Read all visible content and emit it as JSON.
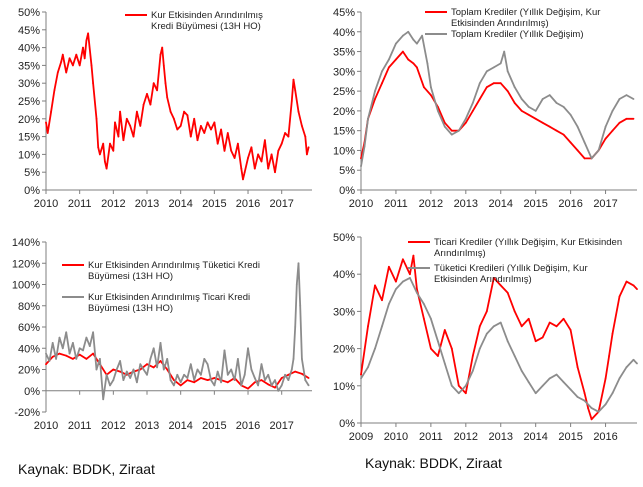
{
  "colors": {
    "red": "#ff0000",
    "gray": "#8c8c8c",
    "axis": "#7f7f7f"
  },
  "sources": {
    "left": "Kaynak: BDDK, Ziraat",
    "right": "Kaynak: BDDK, Ziraat"
  },
  "chart_data": [
    {
      "type": "line",
      "title": "",
      "ylim": [
        0,
        50
      ],
      "ytick_values": [
        0,
        5,
        10,
        15,
        20,
        25,
        30,
        35,
        40,
        45,
        50
      ],
      "ytick_labels": [
        "0%",
        "5%",
        "10%",
        "15%",
        "20%",
        "25%",
        "30%",
        "35%",
        "40%",
        "45%",
        "50%"
      ],
      "xlim": [
        2010,
        2017.9
      ],
      "xtick_values": [
        2010,
        2011,
        2012,
        2013,
        2014,
        2015,
        2016,
        2017
      ],
      "xtick_labels": [
        "2010",
        "2011",
        "2012",
        "2013",
        "2014",
        "2015",
        "2016",
        "2017"
      ],
      "grid": false,
      "legend_position": "top-right",
      "series": [
        {
          "name": "Kur Etkisinden Arındırılmış Kredi Büyümesi (13H HO)",
          "legend_lines": [
            "Kur Etkisinden Arındırılmış",
            "Kredi Büyümesi (13H HO)"
          ],
          "color": "red",
          "x": [
            2010.0,
            2010.05,
            2010.15,
            2010.25,
            2010.35,
            2010.45,
            2010.5,
            2010.6,
            2010.7,
            2010.8,
            2010.9,
            2011.0,
            2011.1,
            2011.15,
            2011.2,
            2011.25,
            2011.35,
            2011.4,
            2011.5,
            2011.55,
            2011.6,
            2011.7,
            2011.75,
            2011.8,
            2011.9,
            2012.0,
            2012.05,
            2012.15,
            2012.2,
            2012.3,
            2012.4,
            2012.5,
            2012.6,
            2012.7,
            2012.8,
            2012.9,
            2013.0,
            2013.1,
            2013.2,
            2013.3,
            2013.4,
            2013.45,
            2013.5,
            2013.55,
            2013.6,
            2013.7,
            2013.8,
            2013.9,
            2014.0,
            2014.1,
            2014.2,
            2014.3,
            2014.4,
            2014.5,
            2014.6,
            2014.7,
            2014.8,
            2014.9,
            2015.0,
            2015.1,
            2015.2,
            2015.3,
            2015.4,
            2015.5,
            2015.6,
            2015.7,
            2015.8,
            2015.85,
            2015.9,
            2016.0,
            2016.1,
            2016.2,
            2016.3,
            2016.4,
            2016.5,
            2016.6,
            2016.7,
            2016.8,
            2016.9,
            2017.0,
            2017.1,
            2017.2,
            2017.3,
            2017.35,
            2017.4,
            2017.5,
            2017.6,
            2017.7,
            2017.75,
            2017.8
          ],
          "y": [
            19,
            16,
            22,
            28,
            33,
            36,
            38,
            33,
            37,
            35,
            38,
            35,
            40,
            37,
            42,
            44,
            35,
            30,
            20,
            12,
            10,
            13,
            8,
            6,
            13,
            11,
            19,
            15,
            22,
            14,
            20,
            18,
            15,
            22,
            18,
            24,
            27,
            24,
            30,
            28,
            38,
            40,
            35,
            30,
            26,
            22,
            20,
            17,
            18,
            22,
            21,
            15,
            20,
            14,
            18,
            16,
            19,
            17,
            19,
            13,
            17,
            11,
            16,
            11,
            9,
            13,
            6,
            3,
            5,
            9,
            12,
            6,
            10,
            8,
            14,
            6,
            10,
            5,
            11,
            13,
            16,
            15,
            25,
            31,
            28,
            22,
            18,
            15,
            10,
            12
          ]
        }
      ]
    },
    {
      "type": "line",
      "title": "",
      "ylim": [
        0,
        45
      ],
      "ytick_values": [
        0,
        5,
        10,
        15,
        20,
        25,
        30,
        35,
        40,
        45
      ],
      "ytick_labels": [
        "0%",
        "5%",
        "10%",
        "15%",
        "20%",
        "25%",
        "30%",
        "35%",
        "40%",
        "45%"
      ],
      "xlim": [
        2010,
        2017.9
      ],
      "xtick_values": [
        2010,
        2011,
        2012,
        2013,
        2014,
        2015,
        2016,
        2017
      ],
      "xtick_labels": [
        "2010",
        "2011",
        "2012",
        "2013",
        "2014",
        "2015",
        "2016",
        "2017"
      ],
      "grid": false,
      "legend_position": "top-right",
      "series": [
        {
          "name": "Toplam Krediler (Yıllık Değişim, Kur Etkisinden Arındırılmış)",
          "legend_lines": [
            "Toplam Krediler (Yıllık Değişim, Kur",
            "Etkisinden Arındırılmış)"
          ],
          "color": "red",
          "x": [
            2010.0,
            2010.1,
            2010.2,
            2010.4,
            2010.6,
            2010.8,
            2011.0,
            2011.2,
            2011.35,
            2011.5,
            2011.6,
            2011.8,
            2012.0,
            2012.2,
            2012.4,
            2012.6,
            2012.8,
            2013.0,
            2013.2,
            2013.4,
            2013.6,
            2013.8,
            2014.0,
            2014.2,
            2014.4,
            2014.6,
            2014.8,
            2015.0,
            2015.2,
            2015.4,
            2015.6,
            2015.8,
            2016.0,
            2016.2,
            2016.4,
            2016.6,
            2016.8,
            2017.0,
            2017.2,
            2017.4,
            2017.6,
            2017.8
          ],
          "y": [
            8,
            12,
            18,
            23,
            27,
            31,
            33,
            35,
            33,
            32,
            31,
            26,
            24,
            21,
            17,
            15,
            15,
            17,
            20,
            23,
            26,
            27,
            27,
            25,
            22,
            20,
            19,
            18,
            17,
            16,
            15,
            14,
            12,
            10,
            8,
            8,
            10,
            13,
            15,
            17,
            18,
            18
          ]
        },
        {
          "name": "Toplam Krediler (Yıllık Değişim)",
          "legend_lines": [
            "Toplam Krediler (Yıllık Değişim)"
          ],
          "color": "gray",
          "x": [
            2010.0,
            2010.1,
            2010.2,
            2010.4,
            2010.6,
            2010.8,
            2011.0,
            2011.2,
            2011.35,
            2011.5,
            2011.6,
            2011.75,
            2011.9,
            2012.0,
            2012.2,
            2012.4,
            2012.6,
            2012.8,
            2013.0,
            2013.2,
            2013.4,
            2013.6,
            2013.8,
            2014.0,
            2014.1,
            2014.2,
            2014.4,
            2014.6,
            2014.8,
            2015.0,
            2015.2,
            2015.4,
            2015.6,
            2015.8,
            2016.0,
            2016.2,
            2016.4,
            2016.6,
            2016.8,
            2017.0,
            2017.2,
            2017.4,
            2017.6,
            2017.8
          ],
          "y": [
            6,
            11,
            18,
            25,
            30,
            33,
            37,
            39,
            40,
            38,
            37,
            39,
            32,
            26,
            20,
            16,
            14,
            15,
            18,
            22,
            27,
            30,
            31,
            32,
            35,
            30,
            26,
            23,
            21,
            20,
            23,
            24,
            22,
            21,
            19,
            16,
            12,
            8,
            10,
            16,
            20,
            23,
            24,
            23
          ]
        }
      ]
    },
    {
      "type": "line",
      "title": "",
      "ylim": [
        -20,
        140
      ],
      "ytick_values": [
        -20,
        0,
        20,
        40,
        60,
        80,
        100,
        120,
        140
      ],
      "ytick_labels": [
        "-20%",
        "0%",
        "20%",
        "40%",
        "60%",
        "80%",
        "100%",
        "120%",
        "140%"
      ],
      "xlim": [
        2010,
        2017.9
      ],
      "xtick_values": [
        2010,
        2011,
        2012,
        2013,
        2014,
        2015,
        2016,
        2017
      ],
      "xtick_labels": [
        "2010",
        "2011",
        "2012",
        "2013",
        "2014",
        "2015",
        "2016",
        "2017"
      ],
      "grid": false,
      "legend_position": "top-left",
      "series": [
        {
          "name": "Kur Etkisinden Arındırılmış Tüketici Kredi Büyümesi (13H HO)",
          "legend_lines": [
            "Kur Etkisinden Arındırılmış Tüketici Kredi",
            "Büyümesi (13H HO)"
          ],
          "color": "red",
          "x": [
            2010.0,
            2010.2,
            2010.4,
            2010.6,
            2010.8,
            2011.0,
            2011.2,
            2011.4,
            2011.6,
            2011.8,
            2012.0,
            2012.2,
            2012.4,
            2012.6,
            2012.8,
            2013.0,
            2013.2,
            2013.4,
            2013.6,
            2013.8,
            2014.0,
            2014.2,
            2014.4,
            2014.6,
            2014.8,
            2015.0,
            2015.2,
            2015.4,
            2015.6,
            2015.8,
            2016.0,
            2016.2,
            2016.4,
            2016.6,
            2016.8,
            2017.0,
            2017.2,
            2017.4,
            2017.6,
            2017.8
          ],
          "y": [
            25,
            32,
            35,
            33,
            30,
            34,
            30,
            35,
            25,
            15,
            20,
            18,
            15,
            18,
            20,
            25,
            22,
            28,
            20,
            10,
            5,
            10,
            8,
            12,
            10,
            12,
            10,
            8,
            12,
            5,
            2,
            8,
            10,
            6,
            3,
            12,
            15,
            18,
            16,
            12
          ]
        },
        {
          "name": "Kur Etkisinden Arındırılmış Ticari Kredi Büyümesi (13H HO)",
          "legend_lines": [
            "Kur Etkisinden Arındırılmış Ticari Kredi",
            "Büyümesi (13H HO)"
          ],
          "color": "gray",
          "x": [
            2010.0,
            2010.1,
            2010.2,
            2010.3,
            2010.4,
            2010.5,
            2010.6,
            2010.7,
            2010.8,
            2010.9,
            2011.0,
            2011.1,
            2011.2,
            2011.3,
            2011.4,
            2011.5,
            2011.6,
            2011.7,
            2011.8,
            2011.9,
            2012.0,
            2012.1,
            2012.2,
            2012.3,
            2012.4,
            2012.5,
            2012.6,
            2012.7,
            2012.8,
            2012.9,
            2013.0,
            2013.1,
            2013.2,
            2013.3,
            2013.4,
            2013.5,
            2013.6,
            2013.7,
            2013.8,
            2013.9,
            2014.0,
            2014.1,
            2014.2,
            2014.3,
            2014.4,
            2014.5,
            2014.6,
            2014.7,
            2014.8,
            2014.9,
            2015.0,
            2015.1,
            2015.2,
            2015.3,
            2015.4,
            2015.5,
            2015.6,
            2015.7,
            2015.8,
            2015.9,
            2016.0,
            2016.1,
            2016.2,
            2016.3,
            2016.4,
            2016.5,
            2016.6,
            2016.7,
            2016.8,
            2016.9,
            2017.0,
            2017.1,
            2017.2,
            2017.3,
            2017.35,
            2017.4,
            2017.45,
            2017.5,
            2017.55,
            2017.6,
            2017.7,
            2017.8
          ],
          "y": [
            35,
            28,
            45,
            30,
            50,
            40,
            55,
            35,
            45,
            30,
            40,
            38,
            50,
            42,
            55,
            20,
            30,
            -8,
            15,
            5,
            10,
            20,
            28,
            10,
            18,
            12,
            20,
            8,
            25,
            20,
            15,
            30,
            40,
            22,
            45,
            20,
            30,
            10,
            5,
            15,
            8,
            15,
            12,
            25,
            10,
            20,
            15,
            30,
            25,
            10,
            5,
            18,
            8,
            38,
            15,
            20,
            10,
            30,
            5,
            15,
            40,
            20,
            12,
            5,
            25,
            10,
            15,
            5,
            10,
            0,
            5,
            15,
            10,
            20,
            30,
            60,
            100,
            120,
            80,
            30,
            10,
            5
          ]
        }
      ]
    },
    {
      "type": "line",
      "title": "",
      "ylim": [
        0,
        50
      ],
      "ytick_values": [
        0,
        10,
        20,
        30,
        40,
        50
      ],
      "ytick_labels": [
        "0%",
        "10%",
        "20%",
        "30%",
        "40%",
        "50%"
      ],
      "xlim": [
        2009,
        2016.9
      ],
      "xtick_values": [
        2009,
        2010,
        2011,
        2012,
        2013,
        2014,
        2015,
        2016
      ],
      "xtick_labels": [
        "2009",
        "2010",
        "2011",
        "2012",
        "2013",
        "2014",
        "2015",
        "2016"
      ],
      "grid": false,
      "legend_position": "top-right",
      "series": [
        {
          "name": "Ticari Krediler (Yıllık Değişim, Kur Etkisinden Arındırılmış)",
          "legend_lines": [
            "Ticari Krediler (Yıllık Değişim, Kur Etkisinden",
            "Arındırılmış)"
          ],
          "color": "red",
          "x": [
            2009.0,
            2009.2,
            2009.4,
            2009.6,
            2009.8,
            2010.0,
            2010.2,
            2010.4,
            2010.5,
            2010.6,
            2010.8,
            2011.0,
            2011.2,
            2011.4,
            2011.6,
            2011.8,
            2012.0,
            2012.2,
            2012.4,
            2012.6,
            2012.8,
            2013.0,
            2013.2,
            2013.4,
            2013.6,
            2013.8,
            2014.0,
            2014.2,
            2014.4,
            2014.6,
            2014.8,
            2015.0,
            2015.2,
            2015.4,
            2015.5,
            2015.6,
            2015.8,
            2016.0,
            2016.1,
            2016.2,
            2016.4,
            2016.6,
            2016.8,
            2016.9
          ],
          "y": [
            13,
            26,
            37,
            33,
            42,
            38,
            44,
            40,
            45,
            36,
            28,
            20,
            18,
            25,
            20,
            10,
            8,
            18,
            26,
            30,
            39,
            37,
            35,
            30,
            26,
            28,
            22,
            23,
            27,
            26,
            28,
            25,
            15,
            8,
            4,
            1,
            3,
            12,
            18,
            24,
            34,
            38,
            37,
            36
          ]
        },
        {
          "name": "Tüketici Kredileri (Yıllık Değişim, Kur Etkisinden Arındırılmış)",
          "legend_lines": [
            "Tüketici Kredileri (Yıllık Değişim, Kur",
            "Etkisinden Arındırılmış)"
          ],
          "color": "gray",
          "x": [
            2009.0,
            2009.2,
            2009.4,
            2009.6,
            2009.8,
            2010.0,
            2010.2,
            2010.4,
            2010.6,
            2010.8,
            2011.0,
            2011.2,
            2011.4,
            2011.6,
            2011.8,
            2012.0,
            2012.2,
            2012.4,
            2012.6,
            2012.8,
            2013.0,
            2013.2,
            2013.4,
            2013.6,
            2013.8,
            2014.0,
            2014.2,
            2014.4,
            2014.6,
            2014.8,
            2015.0,
            2015.2,
            2015.4,
            2015.6,
            2015.8,
            2016.0,
            2016.2,
            2016.4,
            2016.6,
            2016.8,
            2016.9
          ],
          "y": [
            12,
            15,
            20,
            26,
            32,
            36,
            38,
            39,
            35,
            32,
            28,
            22,
            16,
            10,
            8,
            10,
            14,
            20,
            24,
            26,
            27,
            22,
            18,
            14,
            11,
            8,
            10,
            12,
            13,
            11,
            9,
            7,
            6,
            4,
            3,
            5,
            8,
            12,
            15,
            17,
            16
          ]
        }
      ]
    }
  ]
}
